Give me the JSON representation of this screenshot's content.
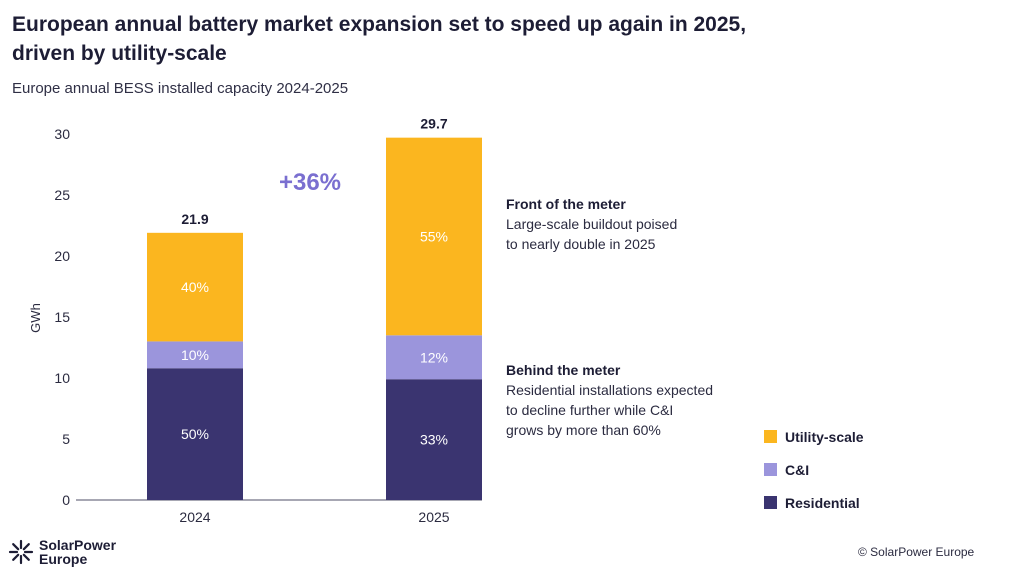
{
  "title_line1": "European  annual battery market expansion set to speed up again in 2025,",
  "title_line2": "driven by utility-scale",
  "subtitle": "Europe annual BESS installed capacity 2024-2025",
  "chart_data": {
    "type": "bar",
    "stacked": true,
    "ylabel": "GWh",
    "ylim": [
      0,
      30
    ],
    "yticks": [
      0,
      5,
      10,
      15,
      20,
      25,
      30
    ],
    "categories": [
      "2024",
      "2025"
    ],
    "totals": [
      21.9,
      29.7
    ],
    "total_labels": [
      "21.9",
      "29.7"
    ],
    "growth_label": "+36%",
    "series": [
      {
        "name": "Residential",
        "values": [
          10.8,
          9.9
        ],
        "labels": [
          "50%",
          "33%"
        ]
      },
      {
        "name": "C&I",
        "values": [
          2.2,
          3.6
        ],
        "labels": [
          "10%",
          "12%"
        ]
      },
      {
        "name": "Utility-scale",
        "values": [
          8.9,
          16.2
        ],
        "labels": [
          "40%",
          "55%"
        ]
      }
    ],
    "legend_position": "right"
  },
  "colors": {
    "Residential": "#3a3470",
    "C&I": "#9b95dc",
    "Utility-scale": "#fbb61f",
    "growth": "#7a6fd0"
  },
  "notes": {
    "front_heading": "Front of the meter",
    "front_text": "Large-scale buildout poised\nto nearly double in 2025",
    "behind_heading": "Behind the meter",
    "behind_text": "Residential installations expected\nto decline further while C&I\ngrows by more than 60%"
  },
  "legend": [
    "Utility-scale",
    "C&I",
    "Residential"
  ],
  "logo": {
    "text": "SolarPower\nEurope",
    "icon": "sunburst-icon"
  },
  "copyright": "© SolarPower Europe"
}
